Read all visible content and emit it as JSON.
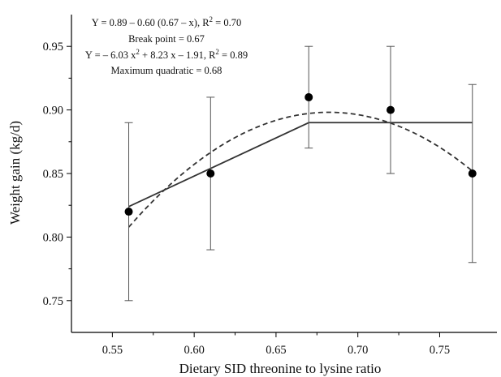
{
  "chart_data": {
    "type": "scatter",
    "xlabel": "Dietary SID threonine to lysine ratio",
    "ylabel": "Weight gain (kg/d)",
    "xlim": [
      0.525,
      0.785
    ],
    "ylim": [
      0.725,
      0.975
    ],
    "x_ticks": [
      {
        "value": 0.55,
        "label": "0.55"
      },
      {
        "value": 0.6,
        "label": "0.60"
      },
      {
        "value": 0.65,
        "label": "0.65"
      },
      {
        "value": 0.7,
        "label": "0.70"
      },
      {
        "value": 0.75,
        "label": "0.75"
      }
    ],
    "y_ticks": [
      {
        "value": 0.75,
        "label": "0.75"
      },
      {
        "value": 0.8,
        "label": "0.80"
      },
      {
        "value": 0.85,
        "label": "0.85"
      },
      {
        "value": 0.9,
        "label": "0.90"
      },
      {
        "value": 0.95,
        "label": "0.95"
      }
    ],
    "points": [
      {
        "x": 0.56,
        "y": 0.82,
        "err_low": 0.75,
        "err_high": 0.89
      },
      {
        "x": 0.61,
        "y": 0.85,
        "err_low": 0.79,
        "err_high": 0.91
      },
      {
        "x": 0.67,
        "y": 0.91,
        "err_low": 0.87,
        "err_high": 0.95
      },
      {
        "x": 0.72,
        "y": 0.9,
        "err_low": 0.85,
        "err_high": 0.95
      },
      {
        "x": 0.77,
        "y": 0.85,
        "err_low": 0.78,
        "err_high": 0.92
      }
    ],
    "broken_line": {
      "intercept": 0.89,
      "slope": 0.6,
      "break_point": 0.67,
      "x_range": [
        0.56,
        0.77
      ],
      "style": "solid"
    },
    "quadratic": {
      "a": -6.03,
      "b": 8.23,
      "c": -1.91,
      "x_range": [
        0.56,
        0.77
      ],
      "style": "dashed"
    },
    "annotations": [
      {
        "id": "eq1",
        "parts": [
          "Y = 0.89 – 0.60 (0.67 – x), R",
          "2",
          " = 0.70"
        ]
      },
      {
        "id": "bp",
        "parts": [
          "Break point = 0.67"
        ]
      },
      {
        "id": "eq2",
        "parts": [
          "Y = – 6.03 x",
          "2",
          " + 8.23 x – 1.91, R",
          "2",
          " = 0.89"
        ]
      },
      {
        "id": "mq",
        "parts": [
          "Maximum quadratic = 0.68"
        ]
      }
    ],
    "grid": false,
    "legend": "none",
    "colors": {
      "line": "#333333",
      "marker": "#000000",
      "axis": "#000000"
    }
  }
}
